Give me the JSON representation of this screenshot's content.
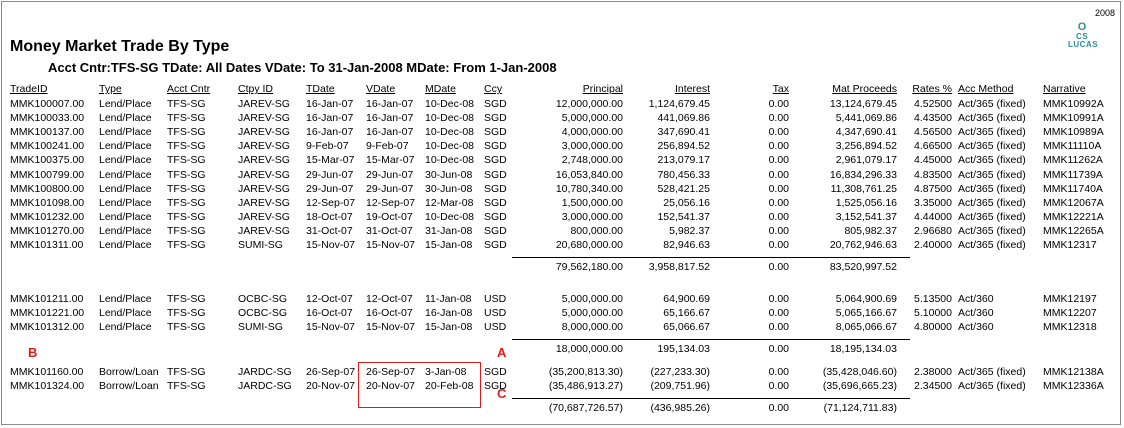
{
  "report": {
    "year": "2008",
    "logo_mark": "O",
    "logo_line1": "CS",
    "logo_line2": "LUCAS",
    "title": "Money Market Trade By Type",
    "subtitle": "Acct Cntr:TFS-SG TDate: All Dates VDate: To  31-Jan-2008 MDate: From  1-Jan-2008"
  },
  "headers": {
    "trade_id": "TradeID",
    "type": "Type",
    "acct_cntr": "Acct Cntr",
    "ctpy_id": "Ctpy ID",
    "tdate": "TDate",
    "vdate": "VDate",
    "mdate": "MDate",
    "ccy": "Ccy",
    "principal": "Principal",
    "interest": "Interest",
    "tax": "Tax",
    "mat_proceeds": "Mat Proceeds",
    "rates": "Rates %",
    "acc_method": "Acc Method",
    "narrative": "Narrative"
  },
  "groups": [
    {
      "rows": [
        [
          "MMK100007.00",
          "Lend/Place",
          "TFS-SG",
          "JAREV-SG",
          "16-Jan-07",
          "16-Jan-07",
          "10-Dec-08",
          "SGD",
          "12,000,000.00",
          "1,124,679.45",
          "0.00",
          "13,124,679.45",
          "4.52500",
          "Act/365 (fixed)",
          "MMK10992A"
        ],
        [
          "MMK100033.00",
          "Lend/Place",
          "TFS-SG",
          "JAREV-SG",
          "16-Jan-07",
          "16-Jan-07",
          "10-Dec-08",
          "SGD",
          "5,000,000.00",
          "441,069.86",
          "0.00",
          "5,441,069.86",
          "4.43500",
          "Act/365 (fixed)",
          "MMK10991A"
        ],
        [
          "MMK100137.00",
          "Lend/Place",
          "TFS-SG",
          "JAREV-SG",
          "16-Jan-07",
          "16-Jan-07",
          "10-Dec-08",
          "SGD",
          "4,000,000.00",
          "347,690.41",
          "0.00",
          "4,347,690.41",
          "4.56500",
          "Act/365 (fixed)",
          "MMK10989A"
        ],
        [
          "MMK100241.00",
          "Lend/Place",
          "TFS-SG",
          "JAREV-SG",
          "9-Feb-07",
          "9-Feb-07",
          "10-Dec-08",
          "SGD",
          "3,000,000.00",
          "256,894.52",
          "0.00",
          "3,256,894.52",
          "4.66500",
          "Act/365 (fixed)",
          "MMK11110A"
        ],
        [
          "MMK100375.00",
          "Lend/Place",
          "TFS-SG",
          "JAREV-SG",
          "15-Mar-07",
          "15-Mar-07",
          "10-Dec-08",
          "SGD",
          "2,748,000.00",
          "213,079.17",
          "0.00",
          "2,961,079.17",
          "4.45000",
          "Act/365 (fixed)",
          "MMK11262A"
        ],
        [
          "MMK100799.00",
          "Lend/Place",
          "TFS-SG",
          "JAREV-SG",
          "29-Jun-07",
          "29-Jun-07",
          "30-Jun-08",
          "SGD",
          "16,053,840.00",
          "780,456.33",
          "0.00",
          "16,834,296.33",
          "4.83500",
          "Act/365 (fixed)",
          "MMK11739A"
        ],
        [
          "MMK100800.00",
          "Lend/Place",
          "TFS-SG",
          "JAREV-SG",
          "29-Jun-07",
          "29-Jun-07",
          "30-Jun-08",
          "SGD",
          "10,780,340.00",
          "528,421.25",
          "0.00",
          "11,308,761.25",
          "4.87500",
          "Act/365 (fixed)",
          "MMK11740A"
        ],
        [
          "MMK101098.00",
          "Lend/Place",
          "TFS-SG",
          "JAREV-SG",
          "12-Sep-07",
          "12-Sep-07",
          "12-Mar-08",
          "SGD",
          "1,500,000.00",
          "25,056.16",
          "0.00",
          "1,525,056.16",
          "3.35000",
          "Act/365 (fixed)",
          "MMK12067A"
        ],
        [
          "MMK101232.00",
          "Lend/Place",
          "TFS-SG",
          "JAREV-SG",
          "18-Oct-07",
          "19-Oct-07",
          "10-Dec-08",
          "SGD",
          "3,000,000.00",
          "152,541.37",
          "0.00",
          "3,152,541.37",
          "4.44000",
          "Act/365 (fixed)",
          "MMK12221A"
        ],
        [
          "MMK101270.00",
          "Lend/Place",
          "TFS-SG",
          "JAREV-SG",
          "31-Oct-07",
          "31-Oct-07",
          "31-Jan-08",
          "SGD",
          "800,000.00",
          "5,982.37",
          "0.00",
          "805,982.37",
          "2.96680",
          "Act/365 (fixed)",
          "MMK12265A"
        ],
        [
          "MMK101311.00",
          "Lend/Place",
          "TFS-SG",
          "SUMI-SG",
          "15-Nov-07",
          "15-Nov-07",
          "15-Jan-08",
          "SGD",
          "20,680,000.00",
          "82,946.63",
          "0.00",
          "20,762,946.63",
          "2.40000",
          "Act/365 (fixed)",
          "MMK12317"
        ]
      ],
      "total": [
        "79,562,180.00",
        "3,958,817.52",
        "0.00",
        "83,520,997.52"
      ]
    },
    {
      "rows": [
        [
          "MMK101211.00",
          "Lend/Place",
          "TFS-SG",
          "OCBC-SG",
          "12-Oct-07",
          "12-Oct-07",
          "11-Jan-08",
          "USD",
          "5,000,000.00",
          "64,900.69",
          "0.00",
          "5,064,900.69",
          "5.13500",
          "Act/360",
          "MMK12197"
        ],
        [
          "MMK101221.00",
          "Lend/Place",
          "TFS-SG",
          "OCBC-SG",
          "16-Oct-07",
          "16-Oct-07",
          "16-Jan-08",
          "USD",
          "5,000,000.00",
          "65,166.67",
          "0.00",
          "5,065,166.67",
          "5.10000",
          "Act/360",
          "MMK12207"
        ],
        [
          "MMK101312.00",
          "Lend/Place",
          "TFS-SG",
          "SUMI-SG",
          "15-Nov-07",
          "15-Nov-07",
          "15-Jan-08",
          "USD",
          "8,000,000.00",
          "65,066.67",
          "0.00",
          "8,065,066.67",
          "4.80000",
          "Act/360",
          "MMK12318"
        ]
      ],
      "total": [
        "18,000,000.00",
        "195,134.03",
        "0.00",
        "18,195,134.03"
      ]
    },
    {
      "rows": [
        [
          "MMK101160.00",
          "Borrow/Loan",
          "TFS-SG",
          "JARDC-SG",
          "26-Sep-07",
          "26-Sep-07",
          "3-Jan-08",
          "SGD",
          "(35,200,813.30)",
          "(227,233.30)",
          "0.00",
          "(35,428,046.60)",
          "2.38000",
          "Act/365 (fixed)",
          "MMK12138A"
        ],
        [
          "MMK101324.00",
          "Borrow/Loan",
          "TFS-SG",
          "JARDC-SG",
          "20-Nov-07",
          "20-Nov-07",
          "20-Feb-08",
          "SGD",
          "(35,486,913.27)",
          "(209,751.96)",
          "0.00",
          "(35,696,665.23)",
          "2.34500",
          "Act/365 (fixed)",
          "MMK12336A"
        ]
      ],
      "total": [
        "(70,687,726.57)",
        "(436,985.26)",
        "0.00",
        "(71,124,711.83)"
      ]
    }
  ],
  "annotations": {
    "a": "A",
    "b": "B",
    "c": "C",
    "color": "#e01b1b"
  }
}
